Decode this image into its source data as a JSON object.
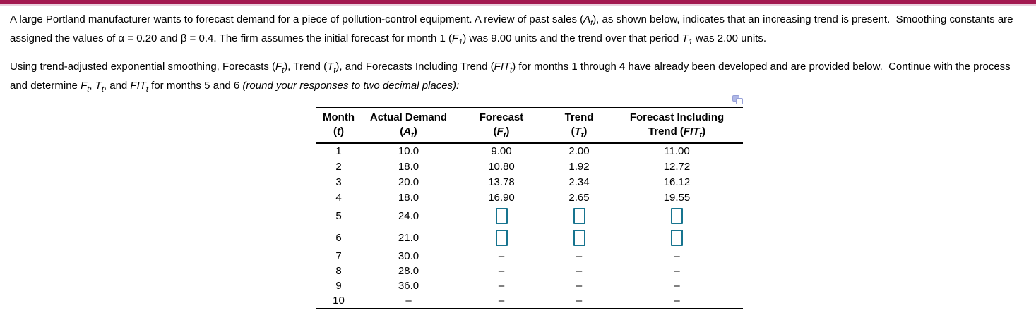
{
  "colors": {
    "accent_bar": "#A31950",
    "accent_bar_underline": "#EAD2DE",
    "answer_input_border": "#17748F",
    "popup_icon": "#96A0D8"
  },
  "icons": {
    "popup": "popup-copy-table-icon"
  },
  "intro": {
    "p1": [
      {
        "t": "A large Portland manufacturer wants to forecast demand for a piece of pollution-control equipment. A review of past sales ("
      },
      {
        "t": "A",
        "s": "var"
      },
      {
        "t": "t",
        "s": "sub"
      },
      {
        "t": "), as shown below, indicates that an increasing trend is present.  Smoothing constants are assigned the values of α = 0.20 and β = 0.4. The firm assumes the initial forecast for month 1 ("
      },
      {
        "t": "F",
        "s": "var"
      },
      {
        "t": "1",
        "s": "sub"
      },
      {
        "t": ") was 9.00 units and the trend over that period "
      },
      {
        "t": "T",
        "s": "var"
      },
      {
        "t": "1",
        "s": "sub"
      },
      {
        "t": " was 2.00 units."
      }
    ],
    "p2": [
      {
        "t": "Using trend-adjusted exponential smoothing, Forecasts ("
      },
      {
        "t": "F",
        "s": "var"
      },
      {
        "t": "t",
        "s": "sub"
      },
      {
        "t": "), Trend ("
      },
      {
        "t": "T",
        "s": "var"
      },
      {
        "t": "t",
        "s": "sub"
      },
      {
        "t": "), and Forecasts Including Trend ("
      },
      {
        "t": "FIT",
        "s": "var"
      },
      {
        "t": "t",
        "s": "sub"
      },
      {
        "t": ") for months 1 through 4 have already been developed and are provided below.  Continue with the process and determine "
      },
      {
        "t": "F",
        "s": "var"
      },
      {
        "t": "t",
        "s": "sub"
      },
      {
        "t": ", "
      },
      {
        "t": "T",
        "s": "var"
      },
      {
        "t": "t",
        "s": "sub"
      },
      {
        "t": ", and "
      },
      {
        "t": "FIT",
        "s": "var"
      },
      {
        "t": "t",
        "s": "sub"
      },
      {
        "t": " for months 5 and 6 "
      },
      {
        "t": "(round your responses to two decimal places):",
        "s": "em"
      }
    ]
  },
  "table": {
    "headers": [
      {
        "l1": [
          {
            "t": "Month"
          }
        ],
        "l2": [
          {
            "t": "("
          },
          {
            "t": "t",
            "s": "var"
          },
          {
            "t": ")"
          }
        ]
      },
      {
        "l1": [
          {
            "t": "Actual Demand"
          }
        ],
        "l2": [
          {
            "t": "("
          },
          {
            "t": "A",
            "s": "var"
          },
          {
            "t": "t",
            "s": "sub"
          },
          {
            "t": ")"
          }
        ]
      },
      {
        "l1": [
          {
            "t": "Forecast"
          }
        ],
        "l2": [
          {
            "t": "("
          },
          {
            "t": "F",
            "s": "var"
          },
          {
            "t": "t",
            "s": "sub"
          },
          {
            "t": ")"
          }
        ]
      },
      {
        "l1": [
          {
            "t": "Trend"
          }
        ],
        "l2": [
          {
            "t": "("
          },
          {
            "t": "T",
            "s": "var"
          },
          {
            "t": "t",
            "s": "sub"
          },
          {
            "t": ")"
          }
        ]
      },
      {
        "l1": [
          {
            "t": "Forecast Including"
          }
        ],
        "l2": [
          {
            "t": "Trend ("
          },
          {
            "t": "FIT",
            "s": "var"
          },
          {
            "t": "t",
            "s": "sub"
          },
          {
            "t": ")"
          }
        ]
      }
    ],
    "rows": [
      {
        "cells": [
          {
            "v": "1"
          },
          {
            "v": "10.0"
          },
          {
            "v": "9.00"
          },
          {
            "v": "2.00"
          },
          {
            "v": "11.00"
          }
        ]
      },
      {
        "cells": [
          {
            "v": "2"
          },
          {
            "v": "18.0"
          },
          {
            "v": "10.80"
          },
          {
            "v": "1.92"
          },
          {
            "v": "12.72"
          }
        ]
      },
      {
        "cells": [
          {
            "v": "3"
          },
          {
            "v": "20.0"
          },
          {
            "v": "13.78"
          },
          {
            "v": "2.34"
          },
          {
            "v": "16.12"
          }
        ]
      },
      {
        "cells": [
          {
            "v": "4"
          },
          {
            "v": "18.0"
          },
          {
            "v": "16.90"
          },
          {
            "v": "2.65"
          },
          {
            "v": "19.55"
          }
        ]
      },
      {
        "input_row": true,
        "cells": [
          {
            "v": "5"
          },
          {
            "v": "24.0"
          },
          {
            "input": "forecast-input-month-5"
          },
          {
            "input": "trend-input-month-5"
          },
          {
            "input": "fit-input-month-5"
          }
        ]
      },
      {
        "input_row": true,
        "cells": [
          {
            "v": "6"
          },
          {
            "v": "21.0"
          },
          {
            "input": "forecast-input-month-6"
          },
          {
            "input": "trend-input-month-6"
          },
          {
            "input": "fit-input-month-6"
          }
        ]
      },
      {
        "tight": true,
        "cells": [
          {
            "v": "7"
          },
          {
            "v": "30.0"
          },
          {
            "v": "–"
          },
          {
            "v": "–"
          },
          {
            "v": "–"
          }
        ]
      },
      {
        "tight": true,
        "cells": [
          {
            "v": "8"
          },
          {
            "v": "28.0"
          },
          {
            "v": "–"
          },
          {
            "v": "–"
          },
          {
            "v": "–"
          }
        ]
      },
      {
        "tight": true,
        "cells": [
          {
            "v": "9"
          },
          {
            "v": "36.0"
          },
          {
            "v": "–"
          },
          {
            "v": "–"
          },
          {
            "v": "–"
          }
        ]
      },
      {
        "tight": true,
        "cells": [
          {
            "v": "10"
          },
          {
            "v": "–"
          },
          {
            "v": "–"
          },
          {
            "v": "–"
          },
          {
            "v": "–"
          }
        ]
      }
    ]
  }
}
